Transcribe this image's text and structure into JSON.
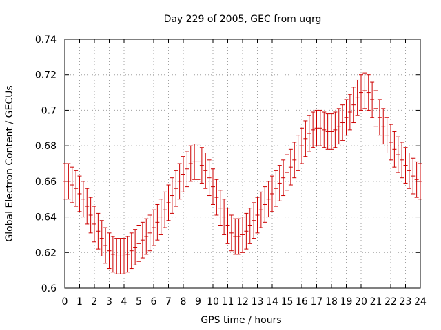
{
  "chart_data": {
    "type": "scatter",
    "title": "Day 229 of 2005, GEC from uqrg",
    "xlabel": "GPS time / hours",
    "ylabel": "Global Electron Content / GECUs",
    "xlim": [
      0,
      24
    ],
    "ylim": [
      0.6,
      0.74
    ],
    "xticks": [
      0,
      1,
      2,
      3,
      4,
      5,
      6,
      7,
      8,
      9,
      10,
      11,
      12,
      13,
      14,
      15,
      16,
      17,
      18,
      19,
      20,
      21,
      22,
      23,
      24
    ],
    "yticks": [
      0.6,
      0.62,
      0.64,
      0.66,
      0.68,
      0.7,
      0.72,
      0.74
    ],
    "ytick_labels": [
      "0.6",
      "0.62",
      "0.64",
      "0.66",
      "0.68",
      "0.7",
      "0.72",
      "0.74"
    ],
    "grid": true,
    "series_color": "#cc0000",
    "error_bar_halfwidth": 0.01,
    "series": [
      {
        "x": [
          0,
          0.25,
          0.5,
          0.75,
          1,
          1.25,
          1.5,
          1.75,
          2,
          2.25,
          2.5,
          2.75,
          3,
          3.25,
          3.5,
          3.75,
          4,
          4.25,
          4.5,
          4.75,
          5,
          5.25,
          5.5,
          5.75,
          6,
          6.25,
          6.5,
          6.75,
          7,
          7.25,
          7.5,
          7.75,
          8,
          8.25,
          8.5,
          8.75,
          9,
          9.25,
          9.5,
          9.75,
          10,
          10.25,
          10.5,
          10.75,
          11,
          11.25,
          11.5,
          11.75,
          12,
          12.25,
          12.5,
          12.75,
          13,
          13.25,
          13.5,
          13.75,
          14,
          14.25,
          14.5,
          14.75,
          15,
          15.25,
          15.5,
          15.75,
          16,
          16.25,
          16.5,
          16.75,
          17,
          17.25,
          17.5,
          17.75,
          18,
          18.25,
          18.5,
          18.75,
          19,
          19.25,
          19.5,
          19.75,
          20,
          20.25,
          20.5,
          20.75,
          21,
          21.25,
          21.5,
          21.75,
          22,
          22.25,
          22.5,
          22.75,
          23,
          23.25,
          23.5,
          23.75,
          24
        ],
        "y": [
          0.66,
          0.66,
          0.658,
          0.656,
          0.653,
          0.65,
          0.646,
          0.641,
          0.636,
          0.632,
          0.628,
          0.624,
          0.621,
          0.619,
          0.618,
          0.618,
          0.618,
          0.619,
          0.621,
          0.623,
          0.625,
          0.627,
          0.629,
          0.631,
          0.634,
          0.637,
          0.64,
          0.644,
          0.648,
          0.652,
          0.656,
          0.66,
          0.664,
          0.667,
          0.67,
          0.671,
          0.671,
          0.669,
          0.666,
          0.662,
          0.657,
          0.651,
          0.645,
          0.64,
          0.635,
          0.631,
          0.629,
          0.629,
          0.63,
          0.632,
          0.635,
          0.638,
          0.641,
          0.644,
          0.647,
          0.65,
          0.653,
          0.656,
          0.659,
          0.662,
          0.665,
          0.668,
          0.672,
          0.676,
          0.68,
          0.684,
          0.687,
          0.689,
          0.69,
          0.69,
          0.689,
          0.688,
          0.688,
          0.689,
          0.691,
          0.693,
          0.696,
          0.699,
          0.703,
          0.707,
          0.71,
          0.711,
          0.71,
          0.706,
          0.701,
          0.696,
          0.691,
          0.686,
          0.682,
          0.678,
          0.675,
          0.672,
          0.669,
          0.666,
          0.663,
          0.661,
          0.66
        ]
      }
    ]
  }
}
